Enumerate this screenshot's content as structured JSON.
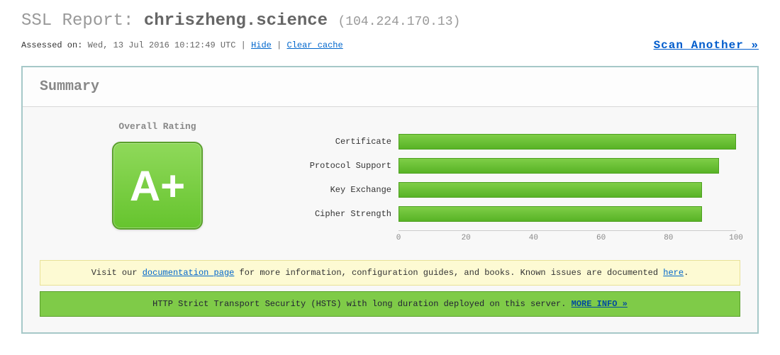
{
  "header": {
    "title_prefix": "SSL Report: ",
    "hostname": "chriszheng.science",
    "ip_display": "(104.224.170.13)"
  },
  "meta": {
    "assessed_label": "Assessed on:  ",
    "assessed_time": "Wed, 13 Jul 2016 10:12:49 UTC",
    "sep": " | ",
    "hide_label": "Hide",
    "clear_cache_label": "Clear cache",
    "scan_another_label": "Scan Another »"
  },
  "summary": {
    "panel_title": "Summary",
    "rating_label": "Overall Rating",
    "grade": "A+",
    "grade_bg_top": "#8fd95a",
    "grade_bg_bottom": "#66c42e",
    "grade_border": "#5aa02c",
    "chart": {
      "type": "bar",
      "xlim": [
        0,
        100
      ],
      "ticks": [
        0,
        20,
        40,
        60,
        80,
        100
      ],
      "bar_color_top": "#7fce47",
      "bar_color_bottom": "#58b326",
      "bar_border": "#4da01f",
      "track_bg": "transparent",
      "rows": [
        {
          "label": "Certificate",
          "value": 100
        },
        {
          "label": "Protocol Support",
          "value": 95
        },
        {
          "label": "Key Exchange",
          "value": 90
        },
        {
          "label": "Cipher Strength",
          "value": 90
        }
      ]
    }
  },
  "notes": {
    "doc_prefix": "Visit our ",
    "doc_link": "documentation page",
    "doc_mid": " for more information, configuration guides, and books. Known issues are documented ",
    "doc_here": "here",
    "doc_suffix": ".",
    "hsts_text": "HTTP Strict Transport Security (HSTS) with long duration deployed on this server.  ",
    "hsts_link": "MORE INFO »"
  },
  "colors": {
    "panel_border": "#a6c8c8",
    "panel_bg": "#f8f8f8",
    "link": "#0066cc"
  }
}
